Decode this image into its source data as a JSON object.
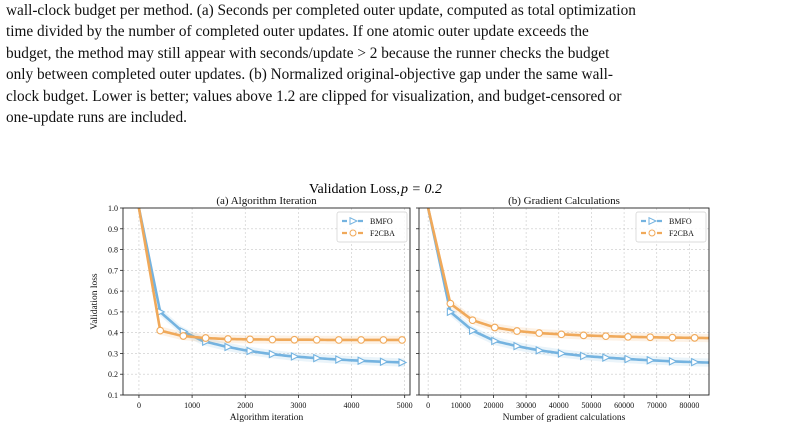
{
  "caption": {
    "line1": "wall-clock budget per method. (a) Seconds per completed outer update, computed as total optimization",
    "line2": "time divided by the number of completed outer updates. If one atomic outer update exceeds the",
    "line3": "budget, the method may still appear with seconds/update > 2 because the runner checks the budget",
    "line4": "only between completed outer updates. (b) Normalized original-objective gap under the same wall-",
    "line5": "clock budget. Lower is better; values above 1.2 are clipped for visualization, and budget-censored or",
    "line6": "one-update runs are included."
  },
  "figure": {
    "suptitle_main": "Validation Loss, ",
    "suptitle_math": "p = 0.2"
  },
  "chart_data": [
    {
      "type": "line",
      "title": "(a) Algorithm Iteration",
      "xlabel": "Algorithm iteration",
      "ylabel": "Validation loss",
      "xlim": [
        -300,
        5100
      ],
      "ylim": [
        0.1,
        1.0
      ],
      "xticks": [
        "0",
        "1000",
        "2000",
        "3000",
        "4000",
        "5000"
      ],
      "yticks": [
        "0.1",
        "0.2",
        "0.3",
        "0.4",
        "0.5",
        "0.6",
        "0.7",
        "0.8",
        "0.9",
        "1.0"
      ],
      "grid": true,
      "legend": "top-right",
      "series": [
        {
          "name": "BMFO",
          "color": "#74b3e0",
          "marker": "triangle-right",
          "x": [
            0,
            400,
            800,
            1200,
            1600,
            2000,
            2400,
            2800,
            3200,
            3600,
            4000,
            4400,
            4800,
            5000
          ],
          "y": [
            1.0,
            0.5,
            0.41,
            0.36,
            0.335,
            0.315,
            0.3,
            0.288,
            0.28,
            0.273,
            0.267,
            0.262,
            0.258,
            0.256
          ],
          "markers_x": [
            400,
            835,
            1255,
            1675,
            2090,
            2510,
            2925,
            3345,
            3760,
            4180,
            4600,
            4950
          ]
        },
        {
          "name": "F2CBA",
          "color": "#f0a95a",
          "marker": "circle",
          "x": [
            0,
            400,
            800,
            1200,
            1600,
            2000,
            2400,
            2800,
            3200,
            3600,
            4000,
            4400,
            4800,
            5000
          ],
          "y": [
            1.0,
            0.41,
            0.385,
            0.375,
            0.37,
            0.368,
            0.367,
            0.366,
            0.366,
            0.365,
            0.365,
            0.365,
            0.365,
            0.365
          ],
          "markers_x": [
            400,
            835,
            1255,
            1675,
            2090,
            2510,
            2925,
            3345,
            3760,
            4180,
            4600,
            4950
          ]
        }
      ]
    },
    {
      "type": "line",
      "title": "(b) Gradient Calculations",
      "xlabel": "Number of gradient calculations",
      "ylabel": "",
      "xlim": [
        -2800,
        86000
      ],
      "ylim": [
        0.1,
        1.0
      ],
      "xticks": [
        "0",
        "10000",
        "20000",
        "30000",
        "40000",
        "50000",
        "60000",
        "70000",
        "80000"
      ],
      "yticks": [
        "0.1",
        "0.2",
        "0.3",
        "0.4",
        "0.5",
        "0.6",
        "0.7",
        "0.8",
        "0.9",
        "1.0"
      ],
      "grid": true,
      "legend": "top-right",
      "series": [
        {
          "name": "BMFO",
          "color": "#74b3e0",
          "marker": "triangle-right",
          "x": [
            0,
            6800,
            13600,
            20400,
            27200,
            34000,
            40800,
            47600,
            54400,
            61200,
            68000,
            74800,
            81600,
            86000
          ],
          "y": [
            1.0,
            0.5,
            0.41,
            0.36,
            0.335,
            0.315,
            0.3,
            0.288,
            0.28,
            0.273,
            0.267,
            0.262,
            0.258,
            0.256
          ],
          "markers_x": [
            6800,
            13600,
            20400,
            27200,
            34000,
            40800,
            47600,
            54400,
            61200,
            68000,
            74800,
            81600
          ]
        },
        {
          "name": "F2CBA",
          "color": "#f0a95a",
          "marker": "circle",
          "x": [
            0,
            6800,
            13600,
            20400,
            27200,
            34000,
            40800,
            47600,
            54400,
            61200,
            68000,
            74800,
            81600,
            86000
          ],
          "y": [
            1.0,
            0.54,
            0.46,
            0.425,
            0.408,
            0.398,
            0.392,
            0.387,
            0.383,
            0.38,
            0.378,
            0.376,
            0.375,
            0.374
          ],
          "markers_x": [
            6800,
            13600,
            20400,
            27200,
            34000,
            40800,
            47600,
            54400,
            61200,
            68000,
            74800,
            81600
          ]
        }
      ]
    }
  ]
}
